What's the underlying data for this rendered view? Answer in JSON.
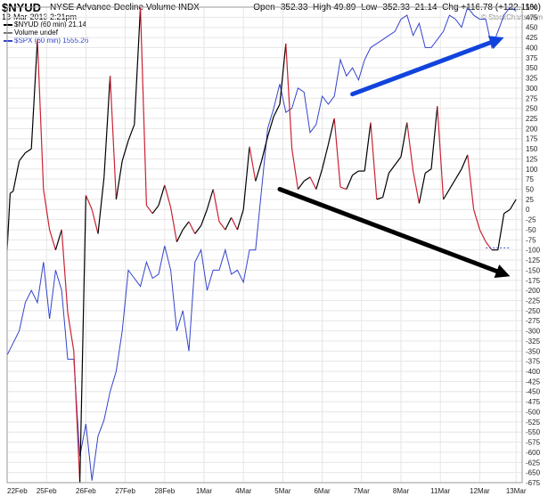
{
  "header": {
    "symbol": "$NYUD",
    "title": "NYSE Advance-Decline Volume INDX",
    "date": "13-Mar-2013 2:21pm",
    "open_label": "Open",
    "open": "-352.33",
    "high_label": "High",
    "high": "49.89",
    "low_label": "Low",
    "low": "-352.33",
    "last": "21.14",
    "chg_label": "Chg",
    "chg": "+116.78 (+122.11%)",
    "watermark": "© StockCharts.com"
  },
  "legend": [
    {
      "text": "$NYUD (60 min) 21.14",
      "color": "#000000"
    },
    {
      "text": "Volume undef",
      "color": "#777777"
    },
    {
      "text": "$SPX (60 min) 1555.26",
      "color": "#3344cc"
    }
  ],
  "chart_data": {
    "type": "line",
    "grid": true,
    "ylim": [
      -675,
      500
    ],
    "yticks": [
      500,
      475,
      450,
      425,
      400,
      375,
      350,
      325,
      300,
      275,
      250,
      225,
      200,
      175,
      150,
      125,
      100,
      75,
      50,
      25,
      0,
      -25,
      -50,
      -75,
      -100,
      -125,
      -150,
      -175,
      -200,
      -225,
      -250,
      -275,
      -300,
      -325,
      -350,
      -375,
      -400,
      -425,
      -450,
      -475,
      -500,
      -525,
      -550,
      -575,
      -600,
      -625,
      -650,
      -675
    ],
    "xlim": [
      0,
      85
    ],
    "xticks": [
      {
        "x": 0,
        "label": "22Feb"
      },
      {
        "x": 6.5,
        "label": "25Feb"
      },
      {
        "x": 13,
        "label": "26Feb"
      },
      {
        "x": 19.5,
        "label": "27Feb"
      },
      {
        "x": 26,
        "label": "28Feb"
      },
      {
        "x": 32.5,
        "label": "1Mar"
      },
      {
        "x": 39,
        "label": "4Mar"
      },
      {
        "x": 45.5,
        "label": "5Mar"
      },
      {
        "x": 52,
        "label": "6Mar"
      },
      {
        "x": 58.5,
        "label": "7Mar"
      },
      {
        "x": 65,
        "label": "8Mar"
      },
      {
        "x": 71.5,
        "label": "11Mar"
      },
      {
        "x": 78,
        "label": "12Mar"
      },
      {
        "x": 84,
        "label": "13Mar"
      }
    ],
    "series": [
      {
        "name": "$NYUD (60 min)",
        "up_color": "#000000",
        "down_color": "#cc2233",
        "x": [
          0,
          0.5,
          1,
          2,
          3,
          4,
          5,
          6,
          7,
          8,
          9,
          10,
          11,
          12,
          13,
          14,
          15,
          16,
          17,
          18,
          19,
          20,
          21,
          22,
          23,
          24,
          25,
          26,
          27,
          28,
          29,
          30,
          31,
          32,
          33,
          34,
          35,
          36,
          37,
          38,
          39,
          40,
          41,
          42,
          43,
          44,
          45,
          46,
          47,
          48,
          49,
          50,
          51,
          52,
          53,
          54,
          55,
          56,
          57,
          58,
          59,
          60,
          61,
          62,
          63,
          64,
          65,
          66,
          67,
          68,
          69,
          70,
          71,
          72,
          73,
          74,
          75,
          76,
          77,
          78,
          79,
          80,
          81,
          82,
          83,
          84
        ],
        "values": [
          -100,
          40,
          45,
          120,
          140,
          150,
          420,
          50,
          -50,
          -100,
          -50,
          -255,
          -350,
          -675,
          35,
          0,
          -60,
          80,
          330,
          25,
          120,
          170,
          210,
          500,
          10,
          -10,
          10,
          60,
          5,
          -80,
          -50,
          -30,
          -60,
          -40,
          0,
          50,
          -30,
          -50,
          -20,
          -50,
          0,
          155,
          70,
          120,
          180,
          230,
          260,
          410,
          150,
          50,
          70,
          80,
          50,
          100,
          160,
          225,
          55,
          50,
          85,
          95,
          95,
          215,
          25,
          30,
          90,
          110,
          130,
          215,
          95,
          15,
          90,
          100,
          255,
          25,
          50,
          75,
          100,
          135,
          0,
          -50,
          -80,
          -100,
          -100,
          -10,
          0,
          25
        ]
      },
      {
        "name": "$SPX (60 min)",
        "color": "#3344cc",
        "x": [
          0,
          1,
          2,
          3,
          4,
          5,
          6,
          7,
          8,
          9,
          10,
          11,
          12,
          13,
          14,
          15,
          16,
          17,
          18,
          19,
          20,
          21,
          22,
          23,
          24,
          25,
          26,
          27,
          28,
          29,
          30,
          31,
          32,
          33,
          34,
          35,
          36,
          37,
          38,
          39,
          40,
          41,
          42,
          43,
          44,
          45,
          46,
          47,
          48,
          49,
          50,
          51,
          52,
          53,
          54,
          55,
          56,
          57,
          58,
          59,
          60,
          61,
          62,
          63,
          64,
          65,
          66,
          67,
          68,
          69,
          70,
          71,
          72,
          73,
          74,
          75,
          76,
          77,
          78,
          79,
          80,
          81,
          82,
          83,
          84
        ],
        "values": [
          -360,
          -330,
          -300,
          -230,
          -200,
          -230,
          -130,
          -270,
          -150,
          -200,
          -370,
          -370,
          -610,
          -530,
          -670,
          -560,
          -520,
          -450,
          -400,
          -300,
          -150,
          -170,
          -190,
          -130,
          -170,
          -160,
          -90,
          -150,
          -300,
          -250,
          -350,
          -130,
          -100,
          -200,
          -150,
          -150,
          -100,
          -160,
          -150,
          -180,
          -100,
          -100,
          50,
          200,
          250,
          310,
          240,
          250,
          300,
          290,
          190,
          210,
          280,
          260,
          280,
          370,
          330,
          350,
          320,
          370,
          400,
          410,
          420,
          430,
          440,
          470,
          480,
          430,
          460,
          400,
          400,
          420,
          440,
          480,
          470,
          450,
          500,
          480,
          470,
          470,
          400,
          440,
          480,
          500,
          490
        ]
      }
    ],
    "annotations": [
      {
        "type": "arrow",
        "color": "#1144dd",
        "from": [
          57,
          285
        ],
        "to": [
          82,
          425
        ]
      },
      {
        "type": "arrow",
        "color": "#000000",
        "from": [
          45,
          50
        ],
        "to": [
          83,
          -165
        ]
      },
      {
        "type": "dashed-line",
        "color": "#3344cc",
        "from": [
          79,
          -95
        ],
        "to": [
          83,
          -95
        ]
      }
    ]
  }
}
